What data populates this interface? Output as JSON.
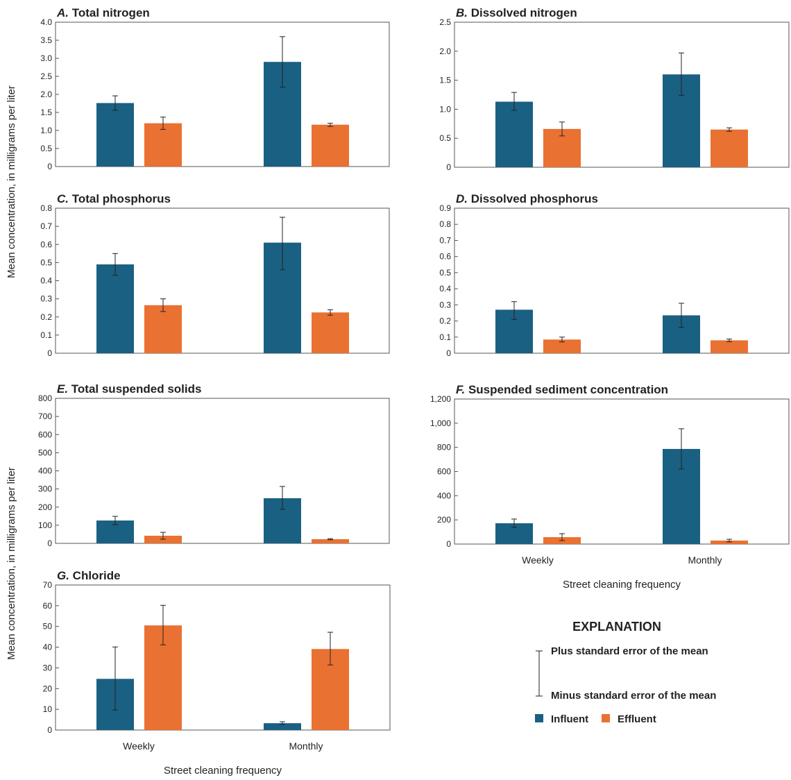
{
  "colors": {
    "influent": "#1a6082",
    "effluent": "#e97132",
    "error_bar": "#222222"
  },
  "y_axis_label": "Mean concentration, in milligrams per liter",
  "legend": {
    "title": "EXPLANATION",
    "plus_se": "Plus standard error of the mean",
    "minus_se": "Minus standard error of the mean",
    "influent": "Influent",
    "effluent": "Effluent"
  },
  "chart_data": [
    {
      "type": "bar",
      "letter": "A.",
      "title": "Total nitrogen",
      "categories": [
        "Weekly",
        "Monthly"
      ],
      "ylim": [
        0,
        4.0
      ],
      "yticks": [
        "0",
        "0.5",
        "1.0",
        "1.5",
        "2.0",
        "2.5",
        "3.0",
        "3.5",
        "4.0"
      ],
      "xlabel": "",
      "show_xticks": false,
      "series": [
        {
          "name": "Influent",
          "values": [
            1.76,
            2.9
          ],
          "se_upper": [
            1.96,
            3.6
          ],
          "se_lower": [
            1.56,
            2.2
          ]
        },
        {
          "name": "Effluent",
          "values": [
            1.2,
            1.16
          ],
          "se_upper": [
            1.37,
            1.2
          ],
          "se_lower": [
            1.03,
            1.11
          ]
        }
      ]
    },
    {
      "type": "bar",
      "letter": "B.",
      "title": "Dissolved nitrogen",
      "categories": [
        "Weekly",
        "Monthly"
      ],
      "ylim": [
        0,
        2.5
      ],
      "yticks": [
        "0",
        "0.5",
        "1.0",
        "1.5",
        "2.0",
        "2.5"
      ],
      "xlabel": "",
      "show_xticks": false,
      "series": [
        {
          "name": "Influent",
          "values": [
            1.13,
            1.6
          ],
          "se_upper": [
            1.29,
            1.97
          ],
          "se_lower": [
            0.98,
            1.24
          ]
        },
        {
          "name": "Effluent",
          "values": [
            0.66,
            0.65
          ],
          "se_upper": [
            0.78,
            0.68
          ],
          "se_lower": [
            0.54,
            0.62
          ]
        }
      ]
    },
    {
      "type": "bar",
      "letter": "C.",
      "title": "Total phosphorus",
      "categories": [
        "Weekly",
        "Monthly"
      ],
      "ylim": [
        0,
        0.8
      ],
      "yticks": [
        "0",
        "0.1",
        "0.2",
        "0.3",
        "0.4",
        "0.5",
        "0.6",
        "0.7",
        "0.8"
      ],
      "xlabel": "",
      "show_xticks": false,
      "series": [
        {
          "name": "Influent",
          "values": [
            0.49,
            0.61
          ],
          "se_upper": [
            0.55,
            0.75
          ],
          "se_lower": [
            0.43,
            0.46
          ]
        },
        {
          "name": "Effluent",
          "values": [
            0.265,
            0.225
          ],
          "se_upper": [
            0.3,
            0.24
          ],
          "se_lower": [
            0.23,
            0.21
          ]
        }
      ]
    },
    {
      "type": "bar",
      "letter": "D.",
      "title": "Dissolved phosphorus",
      "categories": [
        "Weekly",
        "Monthly"
      ],
      "ylim": [
        0,
        0.9
      ],
      "yticks": [
        "0",
        "0.1",
        "0.2",
        "0.3",
        "0.4",
        "0.5",
        "0.6",
        "0.7",
        "0.8",
        "0.9"
      ],
      "xlabel": "",
      "show_xticks": false,
      "series": [
        {
          "name": "Influent",
          "values": [
            0.27,
            0.235
          ],
          "se_upper": [
            0.32,
            0.31
          ],
          "se_lower": [
            0.21,
            0.16
          ]
        },
        {
          "name": "Effluent",
          "values": [
            0.085,
            0.08
          ],
          "se_upper": [
            0.1,
            0.088
          ],
          "se_lower": [
            0.07,
            0.072
          ]
        }
      ]
    },
    {
      "type": "bar",
      "letter": "E.",
      "title": "Total suspended solids",
      "categories": [
        "Weekly",
        "Monthly"
      ],
      "ylim": [
        0,
        800
      ],
      "yticks": [
        "0",
        "100",
        "200",
        "300",
        "400",
        "500",
        "600",
        "700",
        "800"
      ],
      "xlabel": "",
      "show_xticks": false,
      "series": [
        {
          "name": "Influent",
          "values": [
            126,
            249
          ],
          "se_upper": [
            149,
            314
          ],
          "se_lower": [
            103,
            188
          ]
        },
        {
          "name": "Effluent",
          "values": [
            42,
            23
          ],
          "se_upper": [
            61,
            26
          ],
          "se_lower": [
            23,
            20
          ]
        }
      ]
    },
    {
      "type": "bar",
      "letter": "F.",
      "title": "Suspended sediment concentration",
      "categories": [
        "Weekly",
        "Monthly"
      ],
      "ylim": [
        0,
        1200
      ],
      "yticks": [
        "0",
        "200",
        "400",
        "600",
        "800",
        "1,000",
        "1,200"
      ],
      "xlabel": "Street cleaning frequency",
      "show_xticks": true,
      "series": [
        {
          "name": "Influent",
          "values": [
            172,
            787
          ],
          "se_upper": [
            207,
            954
          ],
          "se_lower": [
            138,
            621
          ]
        },
        {
          "name": "Effluent",
          "values": [
            57,
            29
          ],
          "se_upper": [
            86,
            40
          ],
          "se_lower": [
            29,
            18
          ]
        }
      ]
    },
    {
      "type": "bar",
      "letter": "G.",
      "title": "Chloride",
      "categories": [
        "Weekly",
        "Monthly"
      ],
      "ylim": [
        0,
        70
      ],
      "yticks": [
        "0",
        "10",
        "20",
        "30",
        "40",
        "50",
        "60",
        "70"
      ],
      "xlabel": "Street cleaning frequency",
      "show_xticks": true,
      "series": [
        {
          "name": "Influent",
          "values": [
            24.7,
            3.3
          ],
          "se_upper": [
            40.1,
            4.0
          ],
          "se_lower": [
            9.7,
            2.7
          ]
        },
        {
          "name": "Effluent",
          "values": [
            50.5,
            39.1
          ],
          "se_upper": [
            60.2,
            47.2
          ],
          "se_lower": [
            41.1,
            31.4
          ]
        }
      ]
    }
  ]
}
